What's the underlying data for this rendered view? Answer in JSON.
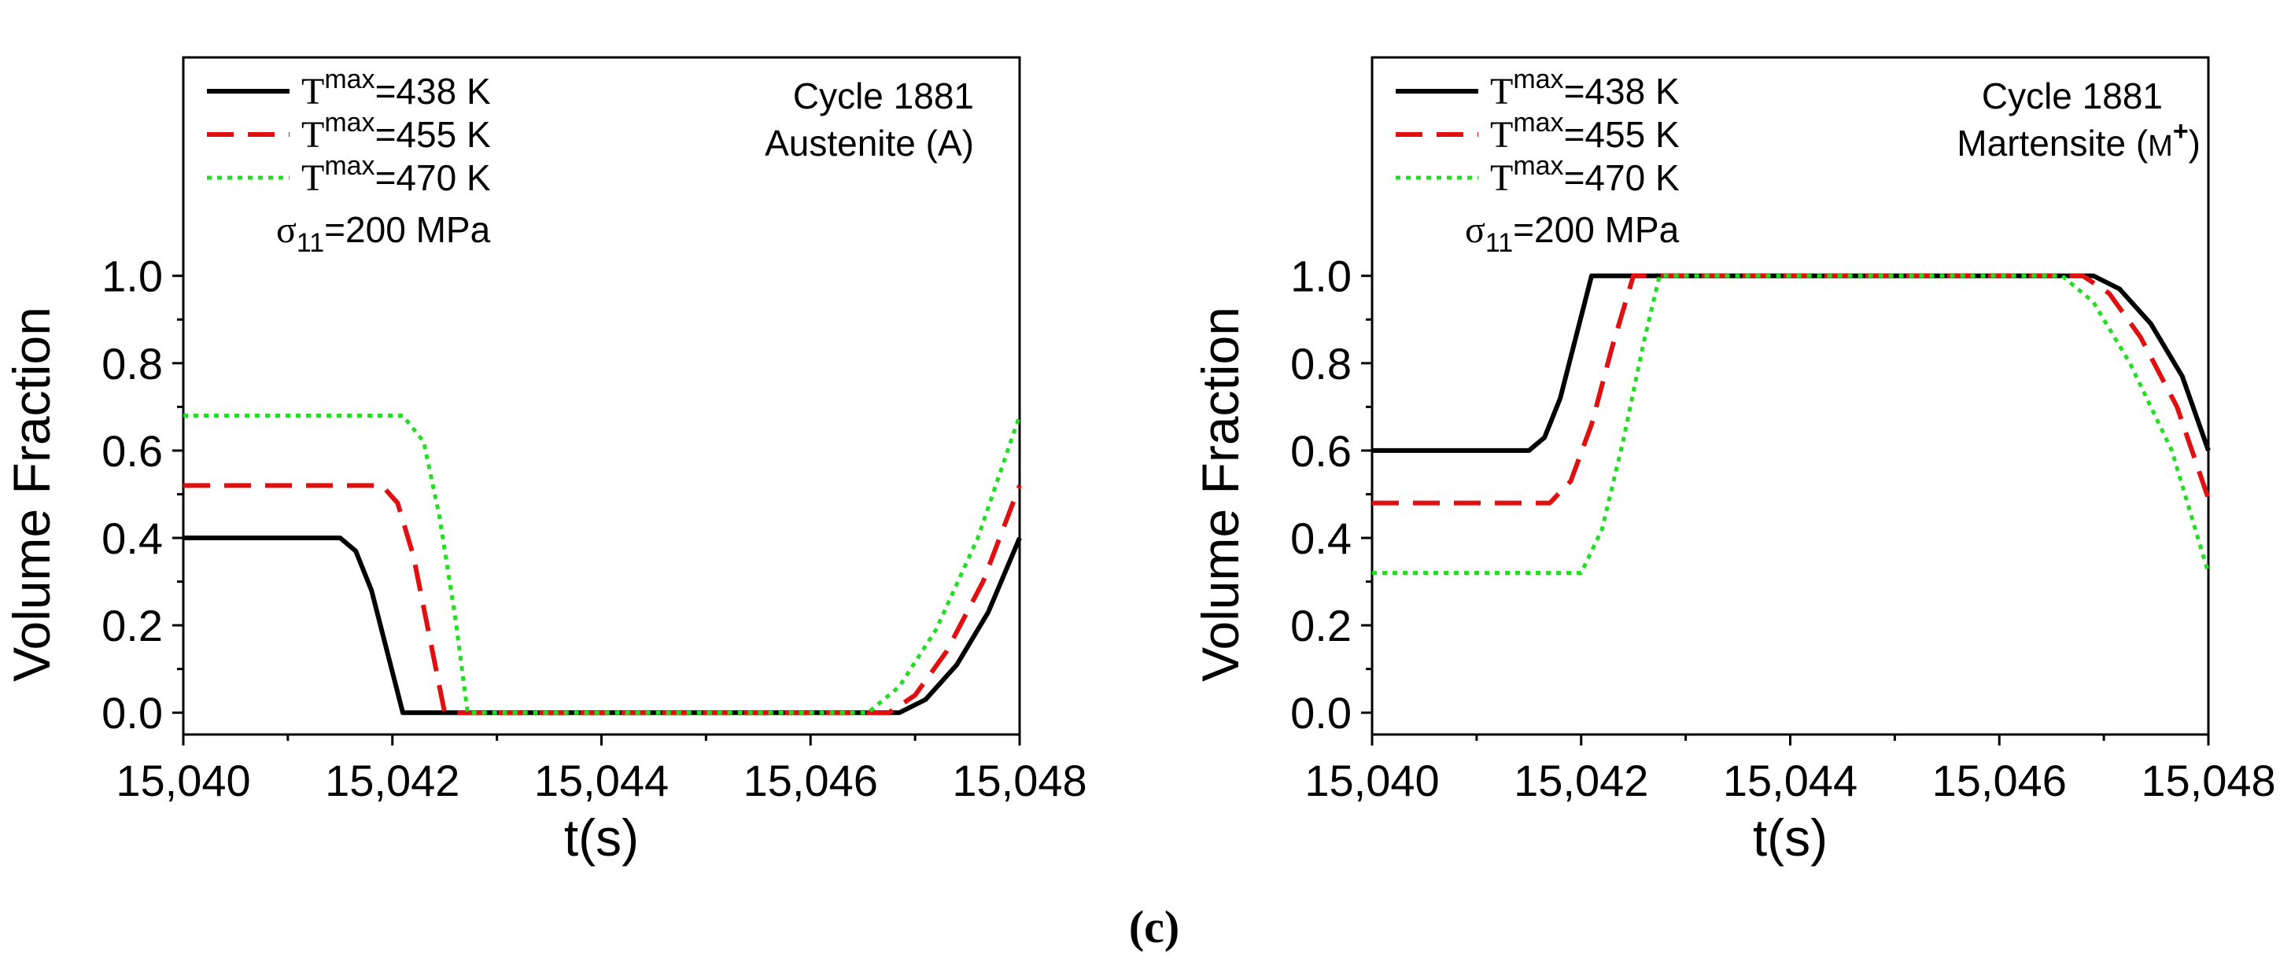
{
  "caption": "(c)",
  "chart_data": [
    {
      "type": "line",
      "annotation": [
        "Cycle 1881",
        "Austenite (A)"
      ],
      "xlabel": "t(s)",
      "ylabel": "Volume Fraction",
      "xlim": [
        15040,
        15048
      ],
      "ylim": [
        -0.05,
        1.5
      ],
      "xticks": [
        15040,
        15042,
        15044,
        15046,
        15048
      ],
      "xtick_labels": [
        "15,040",
        "15,042",
        "15,044",
        "15,046",
        "15,048"
      ],
      "yticks": [
        0.0,
        0.2,
        0.4,
        0.6,
        0.8,
        1.0
      ],
      "ytick_labels": [
        "0.0",
        "0.2",
        "0.4",
        "0.6",
        "0.8",
        "1.0"
      ],
      "stress_label": "σ",
      "stress_sub": "11",
      "stress_value": "=200 MPa",
      "series": [
        {
          "name": "Tmax=438 K",
          "sym": "T",
          "sup": "max",
          "value": "=438 K",
          "color": "#000000",
          "style": "solid",
          "x": [
            15040,
            15041.5,
            15041.65,
            15041.8,
            15041.95,
            15042.1,
            15042.2,
            15046.85,
            15047.1,
            15047.4,
            15047.7,
            15048
          ],
          "y": [
            0.4,
            0.4,
            0.37,
            0.28,
            0.14,
            0.0,
            0.0,
            0.0,
            0.03,
            0.11,
            0.23,
            0.4
          ]
        },
        {
          "name": "Tmax=455 K",
          "sym": "T",
          "sup": "max",
          "value": "=455 K",
          "color": "#e01010",
          "style": "dashed",
          "x": [
            15040,
            15041.9,
            15042.05,
            15042.2,
            15042.35,
            15042.5,
            15042.6,
            15046.75,
            15047.0,
            15047.3,
            15047.65,
            15048
          ],
          "y": [
            0.52,
            0.52,
            0.48,
            0.36,
            0.18,
            0.0,
            0.0,
            0.0,
            0.04,
            0.14,
            0.3,
            0.52
          ]
        },
        {
          "name": "Tmax=470 K",
          "sym": "T",
          "sup": "max",
          "value": "=470 K",
          "color": "#22dd22",
          "style": "dotted",
          "x": [
            15040,
            15042.1,
            15042.3,
            15042.45,
            15042.6,
            15042.72,
            15042.8,
            15046.55,
            15046.85,
            15047.2,
            15047.6,
            15048
          ],
          "y": [
            0.68,
            0.68,
            0.62,
            0.45,
            0.22,
            0.0,
            0.0,
            0.0,
            0.06,
            0.19,
            0.4,
            0.68
          ]
        }
      ]
    },
    {
      "type": "line",
      "annotation": [
        "Cycle 1881",
        "Martensite (M+)"
      ],
      "annotation_base": "Martensite (",
      "annotation_sym": "M",
      "annotation_sup": "+",
      "annotation_end": ")",
      "xlabel": "t(s)",
      "ylabel": "Volume Fraction",
      "xlim": [
        15040,
        15048
      ],
      "ylim": [
        -0.05,
        1.5
      ],
      "xticks": [
        15040,
        15042,
        15044,
        15046,
        15048
      ],
      "xtick_labels": [
        "15,040",
        "15,042",
        "15,044",
        "15,046",
        "15,048"
      ],
      "yticks": [
        0.0,
        0.2,
        0.4,
        0.6,
        0.8,
        1.0
      ],
      "ytick_labels": [
        "0.0",
        "0.2",
        "0.4",
        "0.6",
        "0.8",
        "1.0"
      ],
      "stress_label": "σ",
      "stress_sub": "11",
      "stress_value": "=200 MPa",
      "series": [
        {
          "name": "Tmax=438 K",
          "sym": "T",
          "sup": "max",
          "value": "=438 K",
          "color": "#000000",
          "style": "solid",
          "x": [
            15040,
            15041.5,
            15041.65,
            15041.8,
            15041.95,
            15042.1,
            15042.2,
            15046.9,
            15047.15,
            15047.45,
            15047.75,
            15048
          ],
          "y": [
            0.6,
            0.6,
            0.63,
            0.72,
            0.86,
            1.0,
            1.0,
            1.0,
            0.97,
            0.89,
            0.77,
            0.6
          ]
        },
        {
          "name": "Tmax=455 K",
          "sym": "T",
          "sup": "max",
          "value": "=455 K",
          "color": "#e01010",
          "style": "dashed",
          "x": [
            15040,
            15041.7,
            15041.9,
            15042.1,
            15042.3,
            15042.5,
            15042.6,
            15046.8,
            15047.05,
            15047.35,
            15047.7,
            15048
          ],
          "y": [
            0.48,
            0.48,
            0.53,
            0.66,
            0.84,
            1.0,
            1.0,
            1.0,
            0.96,
            0.86,
            0.7,
            0.49
          ]
        },
        {
          "name": "Tmax=470 K",
          "sym": "T",
          "sup": "max",
          "value": "=470 K",
          "color": "#22dd22",
          "style": "dotted",
          "x": [
            15040,
            15042.0,
            15042.2,
            15042.4,
            15042.6,
            15042.75,
            15042.85,
            15046.6,
            15046.9,
            15047.25,
            15047.65,
            15048
          ],
          "y": [
            0.32,
            0.32,
            0.42,
            0.62,
            0.85,
            1.0,
            1.0,
            1.0,
            0.94,
            0.8,
            0.6,
            0.32
          ]
        }
      ]
    }
  ]
}
